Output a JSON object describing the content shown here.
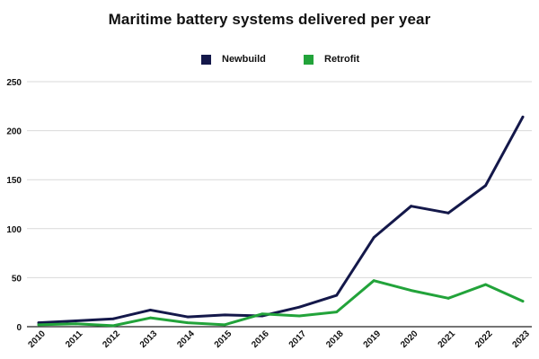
{
  "chart_data": {
    "type": "line",
    "title": "Maritime battery systems delivered per year",
    "xlabel": "",
    "ylabel": "",
    "x": [
      "2010",
      "2011",
      "2012",
      "2013",
      "2014",
      "2015",
      "2016",
      "2017",
      "2018",
      "2019",
      "2020",
      "2021",
      "2022",
      "2023"
    ],
    "ylim": [
      0,
      250
    ],
    "yticks": [
      0,
      50,
      100,
      150,
      200,
      250
    ],
    "grid": "horizontal",
    "legend_position": "top-center",
    "series": [
      {
        "name": "Newbuild",
        "color": "#14184a",
        "values": [
          4,
          6,
          8,
          17,
          10,
          12,
          11,
          20,
          32,
          91,
          123,
          116,
          144,
          214
        ]
      },
      {
        "name": "Retrofit",
        "color": "#22a33a",
        "values": [
          2,
          3,
          1,
          9,
          4,
          2,
          13,
          11,
          15,
          47,
          37,
          29,
          43,
          26
        ]
      }
    ]
  }
}
